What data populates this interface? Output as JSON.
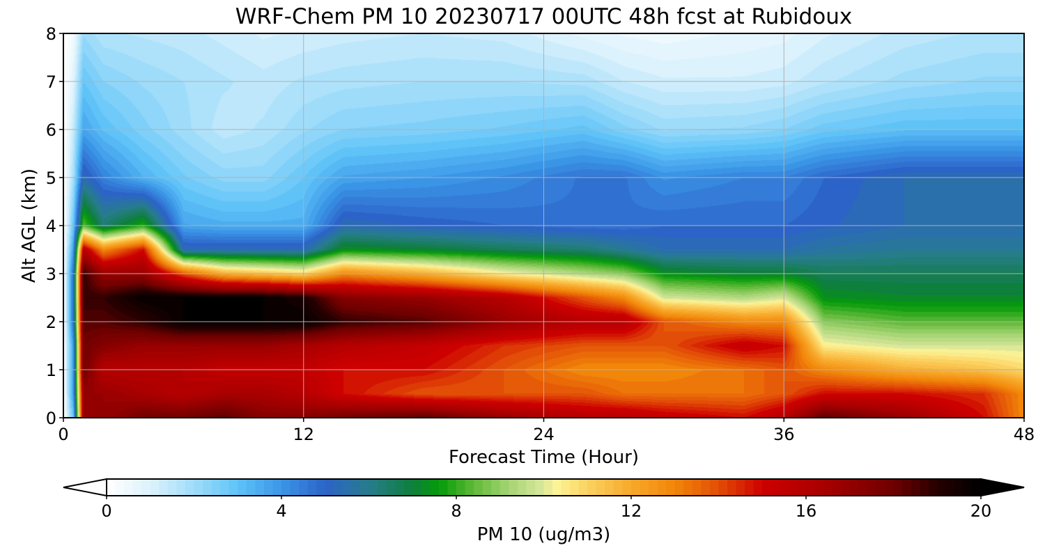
{
  "chart_data": {
    "type": "heatmap",
    "title": "WRF-Chem PM 10  20230717 00UTC 48h fcst at Rubidoux",
    "xlabel": "Forecast Time (Hour)",
    "ylabel": "Alt AGL (km)",
    "xlim": [
      0,
      48
    ],
    "ylim": [
      0,
      8
    ],
    "x_ticks": [
      "0",
      "12",
      "24",
      "36",
      "48"
    ],
    "y_ticks": [
      "0",
      "1",
      "2",
      "3",
      "4",
      "5",
      "6",
      "7",
      "8"
    ],
    "grid": true,
    "z": {
      "x": [
        0,
        0.5,
        1,
        2,
        4,
        6,
        8,
        10,
        12,
        14,
        18,
        22,
        26,
        28,
        30,
        34,
        36,
        38,
        42,
        46,
        48
      ],
      "y": [
        0,
        0.5,
        1,
        1.5,
        2,
        2.5,
        3,
        3.5,
        4,
        5,
        6,
        7,
        8
      ],
      "values": [
        [
          0,
          3,
          17,
          17,
          18,
          18,
          18.5,
          17.5,
          17.5,
          18,
          18.5,
          17,
          16,
          16,
          15.5,
          15,
          16,
          18.5,
          17,
          15,
          13
        ],
        [
          0,
          4,
          17,
          17,
          16.5,
          16,
          16.5,
          16.5,
          16,
          15,
          14,
          14,
          14,
          13.5,
          13.5,
          13.5,
          14,
          15,
          15,
          14.5,
          13
        ],
        [
          0,
          4,
          18,
          16,
          16,
          16,
          15.5,
          15.5,
          15.5,
          15,
          15,
          14,
          13,
          13,
          13,
          13.5,
          14,
          13,
          12,
          11.5,
          11
        ],
        [
          0,
          4,
          18,
          17.5,
          17,
          17,
          17,
          17,
          16.5,
          16,
          15.5,
          14.5,
          14,
          14,
          14,
          15.5,
          15,
          10.5,
          10,
          10,
          10
        ],
        [
          0,
          5,
          18.5,
          18.5,
          19,
          20,
          20,
          20,
          20,
          19,
          18.5,
          17,
          16,
          16,
          14,
          13,
          13,
          9,
          8.5,
          8.5,
          8.5
        ],
        [
          0,
          5,
          19,
          19,
          20,
          20,
          20,
          20,
          19.5,
          17.5,
          17,
          16,
          14,
          13,
          10,
          9.5,
          10,
          7.5,
          7.3,
          7.3,
          7.3
        ],
        [
          0,
          5,
          19,
          17,
          17,
          14,
          12,
          11.5,
          11,
          13,
          12,
          10.5,
          9.5,
          9,
          7.5,
          7.2,
          7.2,
          6.8,
          6.8,
          6.8,
          6.8
        ],
        [
          0,
          4,
          16,
          13,
          15,
          5.5,
          5.5,
          5.5,
          5.5,
          7.5,
          7.2,
          6.8,
          6.5,
          6,
          5.5,
          5.5,
          5.5,
          5.8,
          6,
          6,
          6
        ],
        [
          0,
          3,
          8.5,
          6.5,
          8,
          3.8,
          3.6,
          3.6,
          3.6,
          5.5,
          5.2,
          5,
          4.8,
          4.8,
          5,
          5,
          5,
          5.2,
          5.5,
          5.5,
          5.5
        ],
        [
          0,
          2,
          5.5,
          4.5,
          3.5,
          2.8,
          2.4,
          2.4,
          3,
          3.8,
          4,
          4.3,
          4.8,
          4.8,
          4.2,
          4.5,
          4.5,
          5,
          5.5,
          5.5,
          5.5
        ],
        [
          0,
          1.5,
          3.8,
          3.2,
          2.6,
          2.1,
          1.6,
          1.8,
          2.2,
          2.5,
          2.6,
          2.8,
          3.1,
          2.6,
          2.2,
          2.3,
          2.5,
          2.9,
          3.2,
          3.2,
          3.2
        ],
        [
          0,
          1,
          3,
          2.5,
          2.2,
          2,
          1.8,
          1.6,
          1.8,
          1.9,
          2,
          2,
          1.9,
          1.5,
          1.3,
          1.3,
          1.4,
          1.7,
          2.1,
          2.3,
          2.3
        ],
        [
          0,
          0.5,
          2.2,
          1.8,
          1.7,
          1.6,
          1.4,
          1.2,
          1.3,
          1.4,
          1.5,
          1.4,
          0.9,
          0.7,
          0.6,
          0.8,
          0.9,
          1.2,
          1.6,
          1.8,
          1.8
        ]
      ]
    },
    "colorbar": {
      "label": "PM 10  (ug/m3)",
      "vmin": 0,
      "vmax": 20,
      "ticks": [
        "0",
        "4",
        "8",
        "12",
        "16",
        "20"
      ],
      "extend": "both",
      "stops": [
        {
          "v": 0,
          "color": "#ffffff"
        },
        {
          "v": 1,
          "color": "#dcf2fc"
        },
        {
          "v": 2,
          "color": "#9fdcfa"
        },
        {
          "v": 3,
          "color": "#5fc3f8"
        },
        {
          "v": 4,
          "color": "#3b95e6"
        },
        {
          "v": 5,
          "color": "#2c63c8"
        },
        {
          "v": 6,
          "color": "#277c8c"
        },
        {
          "v": 7,
          "color": "#0e7f3c"
        },
        {
          "v": 7.6,
          "color": "#049a09"
        },
        {
          "v": 8.4,
          "color": "#5fb938"
        },
        {
          "v": 9.2,
          "color": "#a5d473"
        },
        {
          "v": 9.9,
          "color": "#d3e598"
        },
        {
          "v": 10.3,
          "color": "#fdf396"
        },
        {
          "v": 11,
          "color": "#fbd161"
        },
        {
          "v": 12,
          "color": "#f8a82a"
        },
        {
          "v": 13,
          "color": "#f18609"
        },
        {
          "v": 14,
          "color": "#e24d07"
        },
        {
          "v": 15,
          "color": "#cd0000"
        },
        {
          "v": 16.5,
          "color": "#a50000"
        },
        {
          "v": 18,
          "color": "#6e0000"
        },
        {
          "v": 19,
          "color": "#260000"
        },
        {
          "v": 20,
          "color": "#000000"
        }
      ]
    }
  }
}
